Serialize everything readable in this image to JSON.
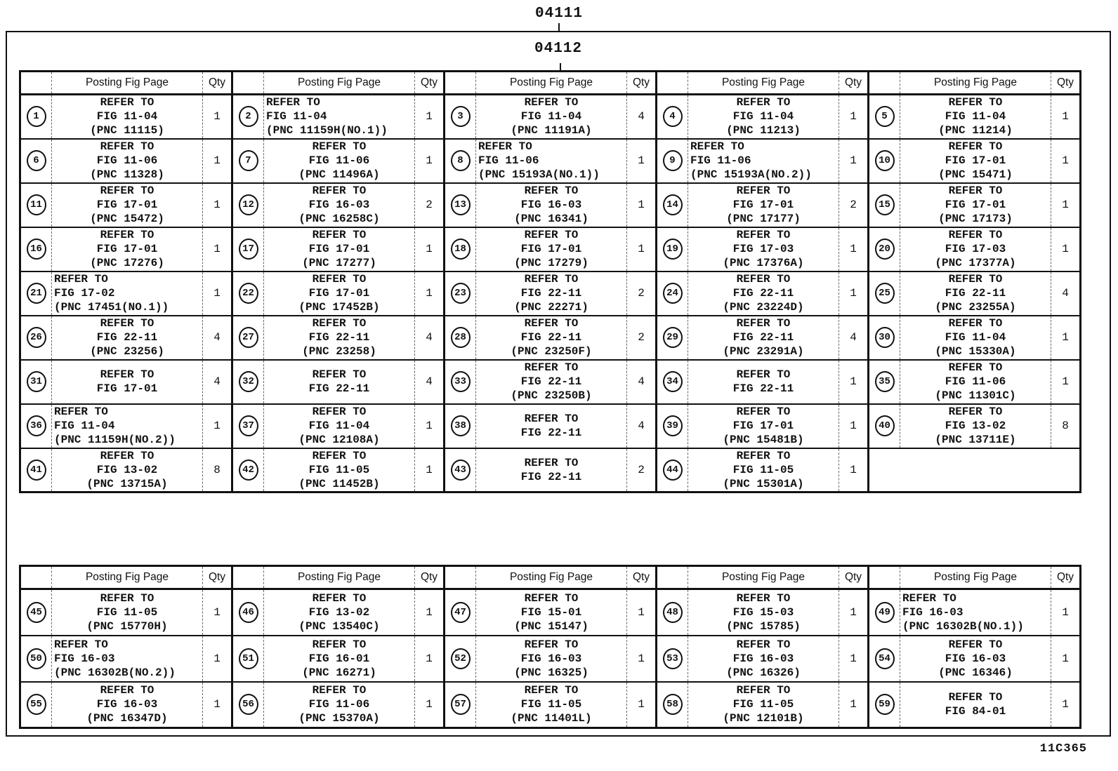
{
  "page": {
    "top_label": "04111",
    "inner_label": "04112",
    "corner_code": "11C365"
  },
  "labels": {
    "refer_to": "REFER TO"
  },
  "table_header": {
    "fig_col": "Posting Fig Page",
    "qty_col": "Qty"
  },
  "tables": [
    {
      "name": "upper",
      "rows": [
        [
          {
            "n": "1",
            "fig": "FIG 11-04",
            "pnc": "(PNC 11115)",
            "qty": "1"
          },
          {
            "n": "2",
            "fig": "FIG 11-04",
            "pnc": "(PNC 11159H(NO.1))",
            "qty": "1"
          },
          {
            "n": "3",
            "fig": "FIG 11-04",
            "pnc": "(PNC 11191A)",
            "qty": "4"
          },
          {
            "n": "4",
            "fig": "FIG 11-04",
            "pnc": "(PNC 11213)",
            "qty": "1"
          },
          {
            "n": "5",
            "fig": "FIG 11-04",
            "pnc": "(PNC 11214)",
            "qty": "1"
          }
        ],
        [
          {
            "n": "6",
            "fig": "FIG 11-06",
            "pnc": "(PNC 11328)",
            "qty": "1"
          },
          {
            "n": "7",
            "fig": "FIG 11-06",
            "pnc": "(PNC 11496A)",
            "qty": "1"
          },
          {
            "n": "8",
            "fig": "FIG 11-06",
            "pnc": "(PNC 15193A(NO.1))",
            "qty": "1"
          },
          {
            "n": "9",
            "fig": "FIG 11-06",
            "pnc": "(PNC 15193A(NO.2))",
            "qty": "1"
          },
          {
            "n": "10",
            "fig": "FIG 17-01",
            "pnc": "(PNC 15471)",
            "qty": "1"
          }
        ],
        [
          {
            "n": "11",
            "fig": "FIG 17-01",
            "pnc": "(PNC 15472)",
            "qty": "1"
          },
          {
            "n": "12",
            "fig": "FIG 16-03",
            "pnc": "(PNC 16258C)",
            "qty": "2"
          },
          {
            "n": "13",
            "fig": "FIG 16-03",
            "pnc": "(PNC 16341)",
            "qty": "1"
          },
          {
            "n": "14",
            "fig": "FIG 17-01",
            "pnc": "(PNC 17177)",
            "qty": "2"
          },
          {
            "n": "15",
            "fig": "FIG 17-01",
            "pnc": "(PNC 17173)",
            "qty": "1"
          }
        ],
        [
          {
            "n": "16",
            "fig": "FIG 17-01",
            "pnc": "(PNC 17276)",
            "qty": "1"
          },
          {
            "n": "17",
            "fig": "FIG 17-01",
            "pnc": "(PNC 17277)",
            "qty": "1"
          },
          {
            "n": "18",
            "fig": "FIG 17-01",
            "pnc": "(PNC 17279)",
            "qty": "1"
          },
          {
            "n": "19",
            "fig": "FIG 17-03",
            "pnc": "(PNC 17376A)",
            "qty": "1"
          },
          {
            "n": "20",
            "fig": "FIG 17-03",
            "pnc": "(PNC 17377A)",
            "qty": "1"
          }
        ],
        [
          {
            "n": "21",
            "fig": "FIG 17-02",
            "pnc": "(PNC 17451(NO.1))",
            "qty": "1"
          },
          {
            "n": "22",
            "fig": "FIG 17-01",
            "pnc": "(PNC 17452B)",
            "qty": "1"
          },
          {
            "n": "23",
            "fig": "FIG 22-11",
            "pnc": "(PNC 22271)",
            "qty": "2"
          },
          {
            "n": "24",
            "fig": "FIG 22-11",
            "pnc": "(PNC 23224D)",
            "qty": "1"
          },
          {
            "n": "25",
            "fig": "FIG 22-11",
            "pnc": "(PNC 23255A)",
            "qty": "4"
          }
        ],
        [
          {
            "n": "26",
            "fig": "FIG 22-11",
            "pnc": "(PNC 23256)",
            "qty": "4"
          },
          {
            "n": "27",
            "fig": "FIG 22-11",
            "pnc": "(PNC 23258)",
            "qty": "4"
          },
          {
            "n": "28",
            "fig": "FIG 22-11",
            "pnc": "(PNC 23250F)",
            "qty": "2"
          },
          {
            "n": "29",
            "fig": "FIG 22-11",
            "pnc": "(PNC 23291A)",
            "qty": "4"
          },
          {
            "n": "30",
            "fig": "FIG 11-04",
            "pnc": "(PNC 15330A)",
            "qty": "1"
          }
        ],
        [
          {
            "n": "31",
            "fig": "FIG 17-01",
            "pnc": "",
            "qty": "4"
          },
          {
            "n": "32",
            "fig": "FIG 22-11",
            "pnc": "",
            "qty": "4"
          },
          {
            "n": "33",
            "fig": "FIG 22-11",
            "pnc": "(PNC 23250B)",
            "qty": "4"
          },
          {
            "n": "34",
            "fig": "FIG 22-11",
            "pnc": "",
            "qty": "1"
          },
          {
            "n": "35",
            "fig": "FIG 11-06",
            "pnc": "(PNC 11301C)",
            "qty": "1"
          }
        ],
        [
          {
            "n": "36",
            "fig": "FIG 11-04",
            "pnc": "(PNC 11159H(NO.2))",
            "qty": "1"
          },
          {
            "n": "37",
            "fig": "FIG 11-04",
            "pnc": "(PNC 12108A)",
            "qty": "1"
          },
          {
            "n": "38",
            "fig": "FIG 22-11",
            "pnc": "",
            "qty": "4"
          },
          {
            "n": "39",
            "fig": "FIG 17-01",
            "pnc": "(PNC 15481B)",
            "qty": "1"
          },
          {
            "n": "40",
            "fig": "FIG 13-02",
            "pnc": "(PNC 13711E)",
            "qty": "8"
          }
        ],
        [
          {
            "n": "41",
            "fig": "FIG 13-02",
            "pnc": "(PNC 13715A)",
            "qty": "8"
          },
          {
            "n": "42",
            "fig": "FIG 11-05",
            "pnc": "(PNC 11452B)",
            "qty": "1"
          },
          {
            "n": "43",
            "fig": "FIG 22-11",
            "pnc": "",
            "qty": "2"
          },
          {
            "n": "44",
            "fig": "FIG 11-05",
            "pnc": "(PNC 15301A)",
            "qty": "1"
          },
          null
        ]
      ]
    },
    {
      "name": "lower",
      "rows": [
        [
          {
            "n": "45",
            "fig": "FIG 11-05",
            "pnc": "(PNC 15770H)",
            "qty": "1"
          },
          {
            "n": "46",
            "fig": "FIG 13-02",
            "pnc": "(PNC 13540C)",
            "qty": "1"
          },
          {
            "n": "47",
            "fig": "FIG 15-01",
            "pnc": "(PNC 15147)",
            "qty": "1"
          },
          {
            "n": "48",
            "fig": "FIG 15-03",
            "pnc": "(PNC 15785)",
            "qty": "1"
          },
          {
            "n": "49",
            "fig": "FIG 16-03",
            "pnc": "(PNC 16302B(NO.1))",
            "qty": "1"
          }
        ],
        [
          {
            "n": "50",
            "fig": "FIG 16-03",
            "pnc": "(PNC 16302B(NO.2))",
            "qty": "1"
          },
          {
            "n": "51",
            "fig": "FIG 16-01",
            "pnc": "(PNC 16271)",
            "qty": "1"
          },
          {
            "n": "52",
            "fig": "FIG 16-03",
            "pnc": "(PNC 16325)",
            "qty": "1"
          },
          {
            "n": "53",
            "fig": "FIG 16-03",
            "pnc": "(PNC 16326)",
            "qty": "1"
          },
          {
            "n": "54",
            "fig": "FIG 16-03",
            "pnc": "(PNC 16346)",
            "qty": "1"
          }
        ],
        [
          {
            "n": "55",
            "fig": "FIG 16-03",
            "pnc": "(PNC 16347D)",
            "qty": "1"
          },
          {
            "n": "56",
            "fig": "FIG 11-06",
            "pnc": "(PNC 15370A)",
            "qty": "1"
          },
          {
            "n": "57",
            "fig": "FIG 11-05",
            "pnc": "(PNC 11401L)",
            "qty": "1"
          },
          {
            "n": "58",
            "fig": "FIG 11-05",
            "pnc": "(PNC 12101B)",
            "qty": "1"
          },
          {
            "n": "59",
            "fig": "FIG 84-01",
            "pnc": "",
            "qty": "1"
          }
        ]
      ]
    }
  ]
}
